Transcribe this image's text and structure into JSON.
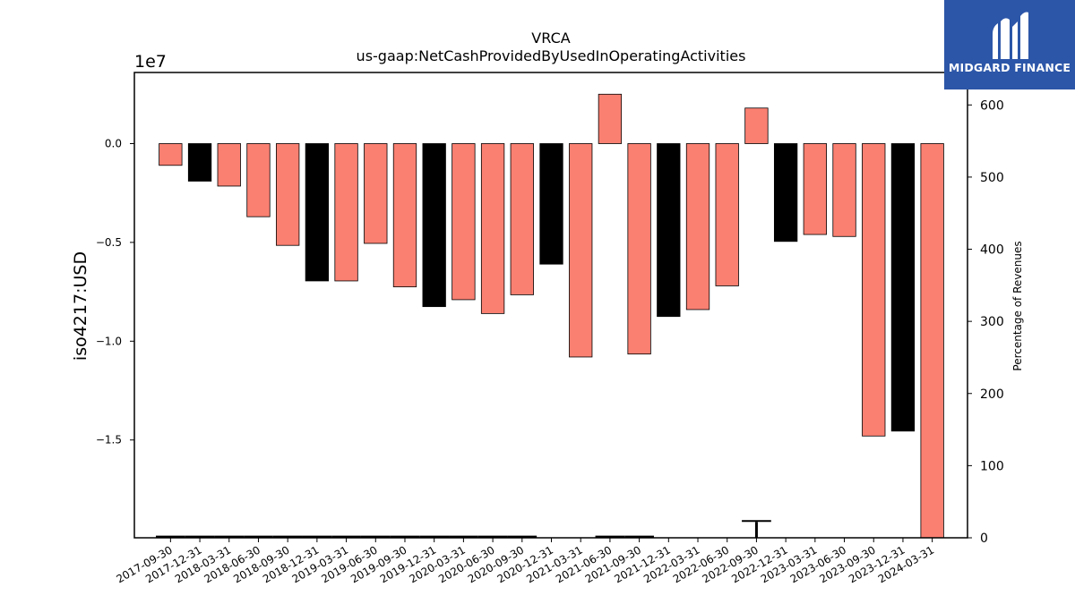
{
  "chart_data": {
    "type": "bar",
    "title": "VRCA",
    "subtitle": "us-gaap:NetCashProvidedByUsedInOperatingActivities",
    "ylabel": "iso4217:USD",
    "y_offset_label": "1e7",
    "y2label": "Percentage of Revenues",
    "ylim": [
      -1.995,
      0.36
    ],
    "y2lim": [
      0,
      645
    ],
    "yticks": [
      "0.0",
      "−0.5",
      "−1.0",
      "−1.5"
    ],
    "y2ticks": [
      "0",
      "100",
      "200",
      "300",
      "400",
      "500",
      "600"
    ],
    "categories": [
      "2017-09-30",
      "2017-12-31",
      "2018-03-31",
      "2018-06-30",
      "2018-09-30",
      "2018-12-31",
      "2019-03-31",
      "2019-06-30",
      "2019-09-30",
      "2019-12-31",
      "2020-03-31",
      "2020-06-30",
      "2020-09-30",
      "2020-12-31",
      "2021-03-31",
      "2021-06-30",
      "2021-09-30",
      "2021-12-31",
      "2022-03-31",
      "2022-06-30",
      "2022-09-30",
      "2022-12-31",
      "2023-03-31",
      "2023-06-30",
      "2023-09-30",
      "2023-12-31",
      "2024-03-31"
    ],
    "values": [
      -0.11,
      -0.19,
      -0.215,
      -0.37,
      -0.515,
      -0.695,
      -0.695,
      -0.505,
      -0.725,
      -0.825,
      -0.79,
      -0.86,
      -0.765,
      -0.61,
      -1.08,
      0.25,
      -1.065,
      -0.875,
      -0.84,
      -0.72,
      0.18,
      -0.495,
      -0.46,
      -0.47,
      -1.48,
      -1.455,
      -2.0
    ],
    "bar_colors": [
      "#fa8072",
      "#000000",
      "#fa8072",
      "#fa8072",
      "#fa8072",
      "#000000",
      "#fa8072",
      "#fa8072",
      "#fa8072",
      "#000000",
      "#fa8072",
      "#fa8072",
      "#fa8072",
      "#000000",
      "#fa8072",
      "#fa8072",
      "#fa8072",
      "#000000",
      "#fa8072",
      "#fa8072",
      "#fa8072",
      "#000000",
      "#fa8072",
      "#fa8072",
      "#fa8072",
      "#000000",
      "#fa8072"
    ],
    "pct_of_revenue": [
      0.5,
      0.5,
      0.5,
      0.5,
      0.5,
      0.5,
      0.5,
      0.5,
      0.5,
      0.5,
      0.5,
      0.5,
      0.5,
      null,
      null,
      0.5,
      0.5,
      null,
      null,
      null,
      22,
      null,
      null,
      null,
      null,
      null,
      null
    ],
    "grid": false,
    "legend": "none"
  },
  "logo": {
    "text": "MIDGARD FINANCE",
    "icon": "midgard-logo-icon",
    "color": "#2c56a8"
  }
}
